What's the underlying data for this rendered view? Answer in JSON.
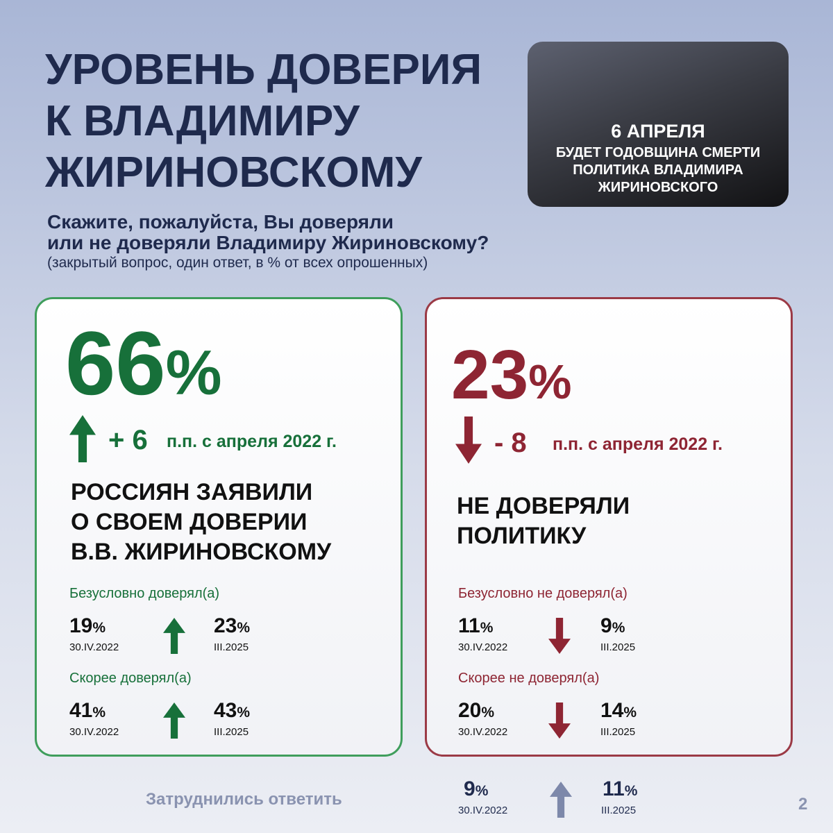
{
  "header": {
    "title_lines": [
      "УРОВЕНЬ ДОВЕРИЯ",
      "К ВЛАДИМИРУ",
      "ЖИРИНОВСКОМУ"
    ],
    "photo_caption": {
      "date": "6 АПРЕЛЯ",
      "lines": [
        "БУДЕТ ГОДОВЩИНА СМЕРТИ",
        "ПОЛИТИКА ВЛАДИМИРА",
        "ЖИРИНОВСКОГО"
      ]
    }
  },
  "question": {
    "lines": [
      "Скажите, пожалуйста, Вы доверяли",
      "или не доверяли Владимиру Жириновскому?"
    ],
    "note": "(закрытый вопрос, один ответ, в % от всех опрошенных)"
  },
  "cards": [
    {
      "value": "66",
      "unit": "%",
      "change_value": "+ 6",
      "change_text": "п.п. с апреля 2022 г.",
      "label_lines": [
        "РОССИЯН ЗАЯВИЛИ",
        "О СВОЕМ ДОВЕРИИ",
        "В.В. ЖИРИНОВСКОМУ"
      ],
      "rows": [
        {
          "label": "Безусловно доверял(а)",
          "before": {
            "value": "19",
            "unit": "%",
            "date": "30.IV.2022"
          },
          "after": {
            "value": "23",
            "unit": "%",
            "date": "III.2025"
          }
        },
        {
          "label": "Скорее доверял(а)",
          "before": {
            "value": "41",
            "unit": "%",
            "date": "30.IV.2022"
          },
          "after": {
            "value": "43",
            "unit": "%",
            "date": "III.2025"
          }
        }
      ]
    },
    {
      "value": "23",
      "unit": "%",
      "change_value": "- 8",
      "change_text": "п.п. с апреля 2022 г.",
      "label_lines": [
        "НЕ ДОВЕРЯЛИ",
        "ПОЛИТИКУ"
      ],
      "rows": [
        {
          "label": "Безусловно не доверял(а)",
          "before": {
            "value": "11",
            "unit": "%",
            "date": "30.IV.2022"
          },
          "after": {
            "value": "9",
            "unit": "%",
            "date": "III.2025"
          }
        },
        {
          "label": "Скорее не доверял(а)",
          "before": {
            "value": "20",
            "unit": "%",
            "date": "30.IV.2022"
          },
          "after": {
            "value": "14",
            "unit": "%",
            "date": "III.2025"
          }
        }
      ]
    }
  ],
  "footer": {
    "label": "Затруднились ответить",
    "before": {
      "value": "9",
      "unit": "%",
      "date": "30.IV.2022"
    },
    "after": {
      "value": "11",
      "unit": "%",
      "date": "III.2025"
    },
    "page": "2"
  }
}
